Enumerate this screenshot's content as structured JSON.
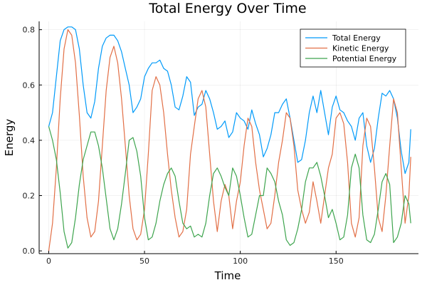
{
  "chart_data": {
    "type": "line",
    "title": "Total Energy Over Time",
    "xlabel": "Time",
    "ylabel": "Energy",
    "xlim": [
      -5,
      193
    ],
    "ylim": [
      -0.01,
      0.83
    ],
    "xticks": [
      0,
      50,
      100,
      150
    ],
    "yticks": [
      0.0,
      0.2,
      0.4,
      0.6,
      0.8
    ],
    "grid": true,
    "legend_position": "top-right",
    "x": [
      0,
      2,
      4,
      6,
      8,
      10,
      12,
      14,
      16,
      18,
      20,
      22,
      24,
      26,
      28,
      30,
      32,
      34,
      36,
      38,
      40,
      42,
      44,
      46,
      48,
      50,
      52,
      54,
      56,
      58,
      60,
      62,
      64,
      66,
      68,
      70,
      72,
      74,
      76,
      78,
      80,
      82,
      84,
      86,
      88,
      90,
      92,
      94,
      96,
      98,
      100,
      102,
      104,
      106,
      108,
      110,
      112,
      114,
      116,
      118,
      120,
      122,
      124,
      126,
      128,
      130,
      132,
      134,
      136,
      138,
      140,
      142,
      144,
      146,
      148,
      150,
      152,
      154,
      156,
      158,
      160,
      162,
      164,
      166,
      168,
      170,
      172,
      174,
      176,
      178,
      180,
      182,
      184,
      186,
      188,
      189
    ],
    "series": [
      {
        "name": "Total Energy",
        "color": "#009af9",
        "values": [
          0.45,
          0.5,
          0.63,
          0.76,
          0.8,
          0.81,
          0.81,
          0.8,
          0.73,
          0.6,
          0.5,
          0.48,
          0.54,
          0.66,
          0.74,
          0.77,
          0.78,
          0.78,
          0.76,
          0.72,
          0.66,
          0.6,
          0.5,
          0.52,
          0.55,
          0.63,
          0.66,
          0.68,
          0.68,
          0.69,
          0.66,
          0.65,
          0.6,
          0.52,
          0.51,
          0.56,
          0.63,
          0.61,
          0.49,
          0.52,
          0.53,
          0.58,
          0.55,
          0.5,
          0.44,
          0.45,
          0.47,
          0.41,
          0.43,
          0.5,
          0.48,
          0.47,
          0.44,
          0.51,
          0.46,
          0.42,
          0.34,
          0.37,
          0.42,
          0.5,
          0.5,
          0.53,
          0.55,
          0.48,
          0.4,
          0.32,
          0.33,
          0.4,
          0.5,
          0.56,
          0.5,
          0.58,
          0.5,
          0.42,
          0.52,
          0.56,
          0.51,
          0.5,
          0.47,
          0.45,
          0.4,
          0.48,
          0.5,
          0.38,
          0.32,
          0.37,
          0.48,
          0.57,
          0.56,
          0.58,
          0.55,
          0.48,
          0.36,
          0.28,
          0.32,
          0.44
        ]
      },
      {
        "name": "Kinetic Energy",
        "color": "#e26f46",
        "values": [
          0.0,
          0.1,
          0.3,
          0.55,
          0.73,
          0.8,
          0.78,
          0.68,
          0.49,
          0.27,
          0.12,
          0.05,
          0.07,
          0.18,
          0.38,
          0.58,
          0.7,
          0.74,
          0.68,
          0.55,
          0.38,
          0.2,
          0.08,
          0.04,
          0.06,
          0.15,
          0.35,
          0.58,
          0.63,
          0.6,
          0.5,
          0.35,
          0.22,
          0.12,
          0.05,
          0.07,
          0.15,
          0.35,
          0.45,
          0.55,
          0.58,
          0.52,
          0.35,
          0.18,
          0.07,
          0.18,
          0.24,
          0.2,
          0.08,
          0.18,
          0.25,
          0.38,
          0.48,
          0.45,
          0.32,
          0.22,
          0.15,
          0.08,
          0.1,
          0.2,
          0.32,
          0.4,
          0.5,
          0.48,
          0.38,
          0.22,
          0.15,
          0.1,
          0.14,
          0.25,
          0.18,
          0.1,
          0.2,
          0.3,
          0.35,
          0.48,
          0.5,
          0.46,
          0.32,
          0.1,
          0.05,
          0.12,
          0.38,
          0.48,
          0.45,
          0.3,
          0.12,
          0.07,
          0.2,
          0.38,
          0.55,
          0.5,
          0.3,
          0.1,
          0.2,
          0.34
        ]
      },
      {
        "name": "Potential Energy",
        "color": "#3da44d",
        "values": [
          0.45,
          0.4,
          0.33,
          0.21,
          0.07,
          0.01,
          0.03,
          0.12,
          0.24,
          0.33,
          0.38,
          0.43,
          0.43,
          0.38,
          0.3,
          0.19,
          0.08,
          0.04,
          0.08,
          0.17,
          0.28,
          0.4,
          0.41,
          0.36,
          0.27,
          0.12,
          0.04,
          0.05,
          0.1,
          0.18,
          0.24,
          0.28,
          0.3,
          0.27,
          0.18,
          0.1,
          0.08,
          0.09,
          0.05,
          0.06,
          0.05,
          0.1,
          0.2,
          0.28,
          0.3,
          0.27,
          0.23,
          0.2,
          0.3,
          0.27,
          0.2,
          0.12,
          0.05,
          0.06,
          0.13,
          0.2,
          0.2,
          0.3,
          0.28,
          0.25,
          0.18,
          0.13,
          0.04,
          0.02,
          0.03,
          0.08,
          0.15,
          0.25,
          0.3,
          0.3,
          0.32,
          0.27,
          0.2,
          0.12,
          0.15,
          0.1,
          0.04,
          0.05,
          0.13,
          0.3,
          0.35,
          0.3,
          0.13,
          0.04,
          0.03,
          0.06,
          0.15,
          0.25,
          0.28,
          0.24,
          0.03,
          0.05,
          0.1,
          0.2,
          0.17,
          0.1
        ]
      }
    ]
  }
}
